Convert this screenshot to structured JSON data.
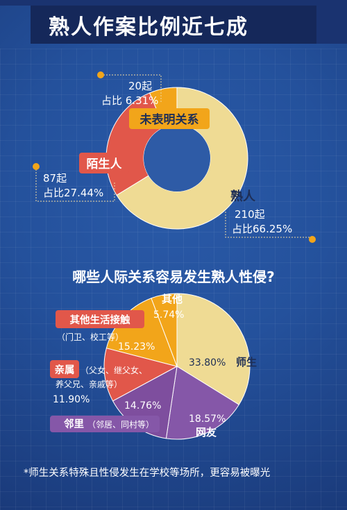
{
  "header": {
    "title": "熟人作案比例近七成"
  },
  "colors": {
    "acquaintance": "#efdb94",
    "stranger": "#e1574a",
    "unclear": "#f2a51a",
    "donut_hole": "#2e5ba6",
    "teacher": "#efdb94",
    "netfriend": "#8557a8",
    "neighbor": "#7e4e9e",
    "relatives": "#e1574a",
    "contact": "#f2a51a",
    "other": "#f2a51a",
    "dot": "#f2a51a"
  },
  "donut": {
    "labels": {
      "unclear": "未表明关系",
      "stranger": "陌生人",
      "acquaintance": "熟人"
    },
    "values": {
      "unclear_count": "20起",
      "unclear_ratio": "占比 6.31%",
      "stranger_count": "87起",
      "stranger_ratio": "占比27.44%",
      "acq_count": "210起",
      "acq_ratio": "占比66.25%"
    }
  },
  "pie": {
    "question": "哪些人际关系容易发生熟人性侵?",
    "labels": {
      "other": "其他",
      "other_pct": "5.74%",
      "contact": "其他生活接触",
      "contact_sub": "（门卫、校工等）",
      "contact_pct": "15.23%",
      "relatives": "亲属",
      "relatives_sub1": "（父女、继父女、",
      "relatives_sub2": "养父兄、亲戚等）",
      "relatives_pct": "11.90%",
      "neighbor": "邻里",
      "neighbor_sub": "（邻居、同村等）",
      "neighbor_pct": "14.76%",
      "netfriend": "网友",
      "netfriend_pct": "18.57%",
      "teacher": "师生",
      "teacher_pct": "33.80%"
    }
  },
  "footer": {
    "note": "*师生关系特殊且性侵发生在学校等场所，更容易被曝光"
  },
  "chart_data": [
    {
      "type": "pie",
      "title": "熟人作案比例近七成",
      "categories": [
        "熟人",
        "陌生人",
        "未表明关系"
      ],
      "values": [
        66.25,
        27.44,
        6.31
      ],
      "counts": [
        210,
        87,
        20
      ]
    },
    {
      "type": "pie",
      "title": "哪些人际关系容易发生熟人性侵?",
      "categories": [
        "师生",
        "网友",
        "邻里",
        "亲属",
        "其他生活接触",
        "其他"
      ],
      "values": [
        33.8,
        18.57,
        14.76,
        11.9,
        15.23,
        5.74
      ]
    }
  ]
}
